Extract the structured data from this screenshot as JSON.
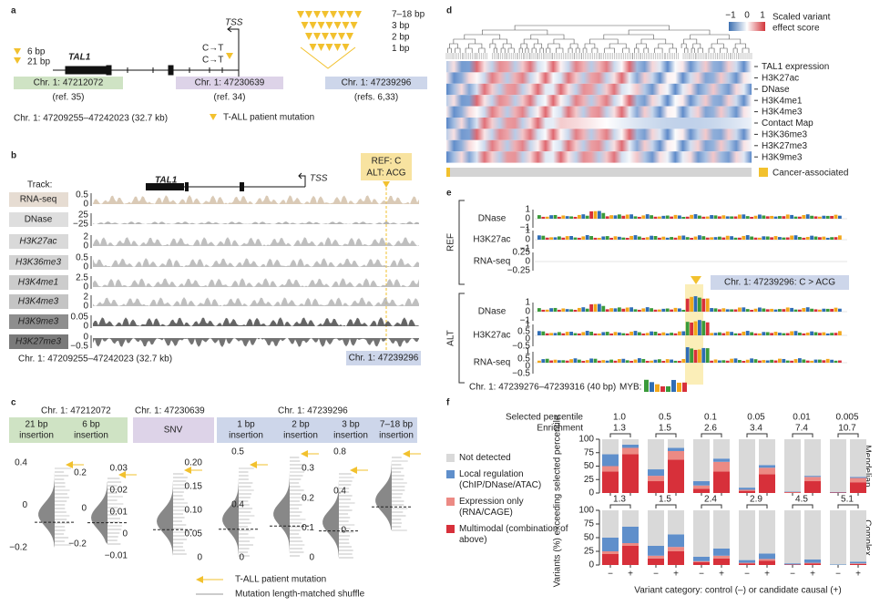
{
  "panels": {
    "a": {
      "label": "a",
      "indels": [
        "6 bp",
        "21 bp"
      ],
      "gene": "TAL1",
      "tss": "TSS",
      "snvs": [
        "C→T",
        "C→T"
      ],
      "insertions": [
        "7–18 bp",
        "3 bp",
        "2 bp",
        "1 bp"
      ],
      "loci": [
        {
          "coord": "Chr. 1: 47212072",
          "ref": "(ref. 35)"
        },
        {
          "coord": "Chr. 1: 47230639",
          "ref": "(ref. 34)"
        },
        {
          "coord": "Chr. 1: 47239296",
          "ref": "(refs. 6,33)"
        }
      ],
      "range": "Chr. 1: 47209255–47242023 (32.7 kb)",
      "legend": "T-ALL patient mutation"
    },
    "b": {
      "label": "b",
      "track_title": "Track:",
      "gene": "TAL1",
      "tss": "TSS",
      "variant": [
        "REF: C",
        "ALT: ACG"
      ],
      "tracks": [
        {
          "name": "RNA-seq",
          "ticks": [
            "0.5",
            "0"
          ]
        },
        {
          "name": "DNase",
          "ticks": [
            "25",
            "−25"
          ]
        },
        {
          "name": "H3K27ac",
          "ticks": [
            "2",
            "0"
          ]
        },
        {
          "name": "H3K36me3",
          "ticks": [
            "0.5",
            "0"
          ]
        },
        {
          "name": "H3K4me1",
          "ticks": [
            "2.5",
            "0"
          ]
        },
        {
          "name": "H3K4me3",
          "ticks": [
            "2",
            "0"
          ]
        },
        {
          "name": "H3K9me3",
          "ticks": [
            "0.05",
            "0"
          ]
        },
        {
          "name": "H3K27me3",
          "ticks": [
            "0",
            "−0.5"
          ]
        }
      ],
      "range": "Chr. 1: 47209255–47242023 (32.7 kb)",
      "locus": "Chr. 1: 47239296"
    },
    "c": {
      "label": "c",
      "loci": [
        "Chr. 1: 47212072",
        "Chr. 1: 47230639",
        "Chr. 1: 47239296"
      ],
      "groups": [
        {
          "name": [
            "21 bp",
            "insertion"
          ],
          "ticks": [
            "0.4",
            "0",
            "−0.2"
          ]
        },
        {
          "name": [
            "6 bp",
            "insertion"
          ],
          "ticks": [
            "0.2",
            "0",
            "−0.2"
          ]
        },
        {
          "name": [
            "SNV"
          ],
          "ticks": [
            "0.03",
            "0.02",
            "0.01",
            "0",
            "−0.01"
          ]
        },
        {
          "name": [
            "1 bp",
            "insertion"
          ],
          "ticks": [
            "0.20",
            "0.15",
            "0.10",
            "0.05",
            "0"
          ]
        },
        {
          "name": [
            "2 bp",
            "insertion"
          ],
          "ticks": [
            "0.5",
            "0.4",
            "0"
          ]
        },
        {
          "name": [
            "3 bp",
            "insertion"
          ],
          "ticks": [
            "0.3",
            "0.2",
            "0.1",
            "0"
          ]
        },
        {
          "name": [
            "7–18 bp",
            "insertion"
          ],
          "ticks": [
            "0.8",
            "0.4",
            "0"
          ]
        }
      ],
      "legend": [
        "T-ALL patient mutation",
        "Mutation length-matched shuffle"
      ]
    },
    "d": {
      "label": "d",
      "colorbar": [
        "−1",
        "0",
        "1"
      ],
      "colorbar_title": [
        "Scaled variant",
        "effect score"
      ],
      "rows": [
        "TAL1 expression",
        "H3K27ac",
        "DNase",
        "H3K4me1",
        "H3K4me3",
        "Contact Map",
        "H3K36me3",
        "H3K27me3",
        "H3K9me3"
      ],
      "annotation": "Cancer-associated"
    },
    "e": {
      "label": "e",
      "ref": "REF",
      "alt": "ALT",
      "ref_tracks": [
        {
          "name": "DNase",
          "ticks": [
            "1",
            "0",
            "−1"
          ]
        },
        {
          "name": "H3K27ac",
          "ticks": [
            "1",
            "0",
            "−1"
          ]
        },
        {
          "name": "RNA-seq",
          "ticks": [
            "0.25",
            "0",
            "−0.25"
          ]
        }
      ],
      "alt_tracks": [
        {
          "name": "DNase",
          "ticks": [
            "1",
            "0",
            "−1"
          ]
        },
        {
          "name": "H3K27ac",
          "ticks": [
            "1",
            "0.5",
            "0",
            "−0.5"
          ]
        },
        {
          "name": "RNA-seq",
          "ticks": [
            "1",
            "0.5",
            "0",
            "−0.5"
          ]
        }
      ],
      "variant": "Chr. 1: 47239296: C > ACG",
      "range": "Chr. 1: 47239276–47239316 (40 bp)",
      "motif": "MYB:"
    },
    "f": {
      "label": "f",
      "percentile_title": "Selected percentile",
      "enrichment_title": "Enrichment",
      "percentiles": [
        "1.0",
        "0.5",
        "0.1",
        "0.05",
        "0.01",
        "0.005"
      ],
      "ylabel": "Variants (%) exceeding selected percentile",
      "xlabel": "Variant category: control (–) or candidate causal (+)"
    }
  },
  "chart_data": [
    {
      "type": "bar",
      "title": "Mendelian",
      "enrichment": [
        1.3,
        1.5,
        2.6,
        3.4,
        7.4,
        10.7
      ],
      "ylim": [
        0,
        100
      ],
      "yticks": [
        0,
        25,
        50,
        75,
        100
      ],
      "series": [
        {
          "name": "Multimodal (combination of above)",
          "color": "#d7303a",
          "values": [
            40,
            72,
            22,
            62,
            8,
            40,
            4,
            35,
            1,
            22,
            1,
            20
          ]
        },
        {
          "name": "Expression only (RNA/CAGE)",
          "color": "#ec8a84",
          "values": [
            10,
            12,
            10,
            16,
            6,
            18,
            2,
            12,
            1,
            8,
            0,
            8
          ]
        },
        {
          "name": "Local regulation (ChIP/DNase/ATAC)",
          "color": "#5f8fcb",
          "values": [
            22,
            6,
            12,
            6,
            8,
            6,
            4,
            5,
            1,
            2,
            1,
            2
          ]
        },
        {
          "name": "Not detected",
          "color": "#d9d9d9",
          "values": [
            28,
            10,
            56,
            16,
            78,
            36,
            90,
            48,
            97,
            68,
            98,
            70
          ]
        }
      ]
    },
    {
      "type": "bar",
      "title": "Complex",
      "categories": [
        "−",
        "+",
        "−",
        "+",
        "−",
        "+",
        "−",
        "+",
        "−",
        "+",
        "−",
        "+"
      ],
      "enrichment": [
        1.3,
        1.5,
        2.4,
        2.9,
        4.5,
        5.1
      ],
      "ylim": [
        0,
        100
      ],
      "yticks": [
        0,
        25,
        50,
        75,
        100
      ],
      "series": [
        {
          "color": "#d7303a",
          "values": [
            20,
            35,
            12,
            25,
            5,
            12,
            3,
            8,
            1,
            3,
            0,
            2
          ]
        },
        {
          "color": "#ec8a84",
          "values": [
            5,
            5,
            5,
            8,
            2,
            5,
            1,
            3,
            0,
            1,
            0,
            1
          ]
        },
        {
          "color": "#5f8fcb",
          "values": [
            25,
            30,
            18,
            23,
            8,
            13,
            5,
            10,
            2,
            6,
            1,
            3
          ]
        },
        {
          "color": "#d9d9d9",
          "values": [
            50,
            30,
            65,
            44,
            85,
            70,
            91,
            79,
            97,
            90,
            99,
            94
          ]
        }
      ]
    }
  ]
}
